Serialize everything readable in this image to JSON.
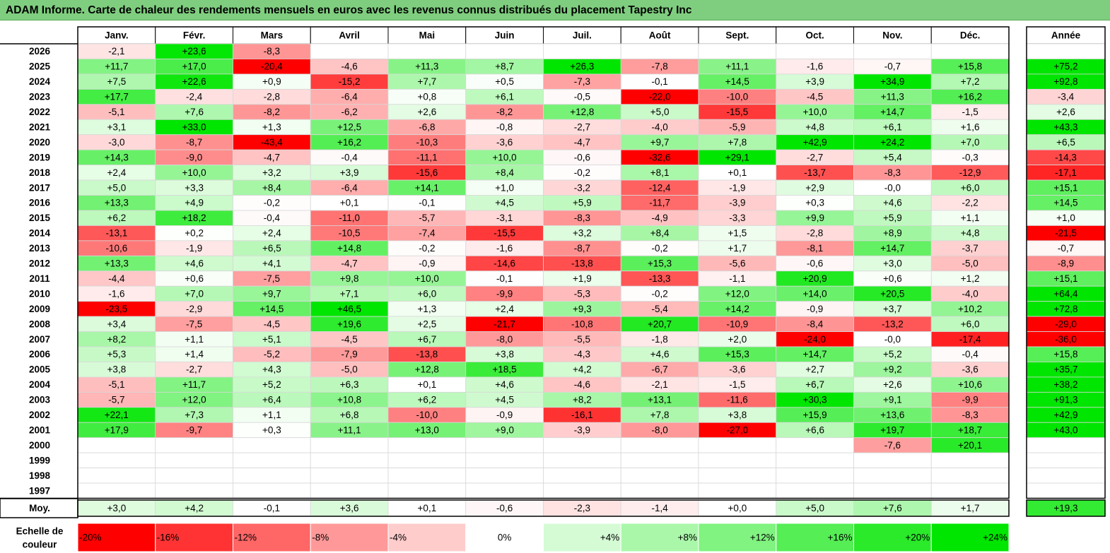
{
  "title": "ADAM Informe. Carte de chaleur des rendements mensuels en euros avec les revenus connus distribués du placement Tapestry Inc",
  "chart_data": {
    "type": "heatmap",
    "title": "ADAM Informe. Carte de chaleur des rendements mensuels en euros avec les revenus connus distribués du placement Tapestry Inc",
    "months": [
      "Janv.",
      "Févr.",
      "Mars",
      "Avril",
      "Mai",
      "Juin",
      "Juil.",
      "Août",
      "Sept.",
      "Oct.",
      "Nov.",
      "Déc."
    ],
    "year_header": "Année",
    "rows": [
      {
        "year": "2026",
        "values": [
          "-2,1",
          "+23,6",
          "-8,3",
          "",
          "",
          "",
          "",
          "",
          "",
          "",
          "",
          ""
        ],
        "annual": ""
      },
      {
        "year": "2025",
        "values": [
          "+11,7",
          "+17,0",
          "-20,4",
          "-4,6",
          "+11,3",
          "+8,7",
          "+26,3",
          "-7,8",
          "+11,1",
          "-1,6",
          "-0,7",
          "+15,8"
        ],
        "annual": "+75,2"
      },
      {
        "year": "2024",
        "values": [
          "+7,5",
          "+22,6",
          "+0,9",
          "-15,2",
          "+7,7",
          "+0,5",
          "-7,3",
          "-0,1",
          "+14,5",
          "+3,9",
          "+34,9",
          "+7,2"
        ],
        "annual": "+92,8"
      },
      {
        "year": "2023",
        "values": [
          "+17,7",
          "-2,4",
          "-2,8",
          "-6,4",
          "+0,8",
          "+6,1",
          "-0,5",
          "-22,0",
          "-10,0",
          "-4,5",
          "+11,3",
          "+16,2"
        ],
        "annual": "-3,4"
      },
      {
        "year": "2022",
        "values": [
          "-5,1",
          "+7,6",
          "-8,2",
          "-6,2",
          "+2,6",
          "-8,2",
          "+12,8",
          "+5,0",
          "-15,5",
          "+10,0",
          "+14,7",
          "-1,5"
        ],
        "annual": "+2,6"
      },
      {
        "year": "2021",
        "values": [
          "+3,1",
          "+33,0",
          "+1,3",
          "+12,5",
          "-6,8",
          "-0,8",
          "-2,7",
          "-4,0",
          "-5,9",
          "+4,8",
          "+6,1",
          "+1,6"
        ],
        "annual": "+43,3"
      },
      {
        "year": "2020",
        "values": [
          "-3,0",
          "-8,7",
          "-43,4",
          "+16,2",
          "-10,3",
          "-3,6",
          "-4,7",
          "+9,7",
          "+7,8",
          "+42,9",
          "+24,2",
          "+7,0"
        ],
        "annual": "+6,5"
      },
      {
        "year": "2019",
        "values": [
          "+14,3",
          "-9,0",
          "-4,7",
          "-0,4",
          "-11,1",
          "+10,0",
          "-0,6",
          "-32,6",
          "+29,1",
          "-2,7",
          "+5,4",
          "-0,3"
        ],
        "annual": "-14,3"
      },
      {
        "year": "2018",
        "values": [
          "+2,4",
          "+10,0",
          "+3,2",
          "+3,9",
          "-15,6",
          "+8,4",
          "-0,2",
          "+8,1",
          "+0,1",
          "-13,7",
          "-8,3",
          "-12,9"
        ],
        "annual": "-17,1"
      },
      {
        "year": "2017",
        "values": [
          "+5,0",
          "+3,3",
          "+8,4",
          "-6,4",
          "+14,1",
          "+1,0",
          "-3,2",
          "-12,4",
          "-1,9",
          "+2,9",
          "-0,0",
          "+6,0"
        ],
        "annual": "+15,1"
      },
      {
        "year": "2016",
        "values": [
          "+13,3",
          "+4,9",
          "-0,2",
          "+0,1",
          "-0,1",
          "+4,5",
          "+5,9",
          "-11,7",
          "-3,9",
          "+0,3",
          "+4,6",
          "-2,2"
        ],
        "annual": "+14,5"
      },
      {
        "year": "2015",
        "values": [
          "+6,2",
          "+18,2",
          "-0,4",
          "-11,0",
          "-5,7",
          "-3,1",
          "-8,3",
          "-4,9",
          "-3,3",
          "+9,9",
          "+5,9",
          "+1,1"
        ],
        "annual": "+1,0"
      },
      {
        "year": "2014",
        "values": [
          "-13,1",
          "+0,2",
          "+2,4",
          "-10,5",
          "-7,4",
          "-15,5",
          "+3,2",
          "+8,4",
          "+1,5",
          "-2,8",
          "+8,9",
          "+4,8"
        ],
        "annual": "-21,5"
      },
      {
        "year": "2013",
        "values": [
          "-10,6",
          "-1,9",
          "+6,5",
          "+14,8",
          "-0,2",
          "-1,6",
          "-8,7",
          "-0,2",
          "+1,7",
          "-8,1",
          "+14,7",
          "-3,7"
        ],
        "annual": "-0,7"
      },
      {
        "year": "2012",
        "values": [
          "+13,3",
          "+4,6",
          "+4,1",
          "-4,7",
          "-0,9",
          "-14,6",
          "-13,8",
          "+15,3",
          "-5,6",
          "-0,6",
          "+3,0",
          "-5,0"
        ],
        "annual": "-8,9"
      },
      {
        "year": "2011",
        "values": [
          "-4,4",
          "+0,6",
          "-7,5",
          "+9,8",
          "+10,0",
          "-0,1",
          "+1,9",
          "-13,3",
          "-1,1",
          "+20,9",
          "+0,6",
          "+1,2"
        ],
        "annual": "+15,1"
      },
      {
        "year": "2010",
        "values": [
          "-1,6",
          "+7,0",
          "+9,7",
          "+7,1",
          "+6,0",
          "-9,9",
          "-5,3",
          "-0,2",
          "+12,0",
          "+14,0",
          "+20,5",
          "-4,0"
        ],
        "annual": "+64,4"
      },
      {
        "year": "2009",
        "values": [
          "-23,5",
          "-2,9",
          "+14,5",
          "+46,5",
          "+1,3",
          "+2,4",
          "+9,3",
          "-5,4",
          "+14,2",
          "-0,9",
          "+3,7",
          "+10,2"
        ],
        "annual": "+72,8"
      },
      {
        "year": "2008",
        "values": [
          "+3,4",
          "-7,5",
          "-4,5",
          "+19,6",
          "+2,5",
          "-21,7",
          "-10,8",
          "+20,7",
          "-10,9",
          "-8,4",
          "-13,2",
          "+6,0"
        ],
        "annual": "-29,0"
      },
      {
        "year": "2007",
        "values": [
          "+8,2",
          "+1,1",
          "+5,1",
          "-4,5",
          "+6,7",
          "-8,0",
          "-5,5",
          "-1,8",
          "+2,0",
          "-24,0",
          "-0,0",
          "-17,4"
        ],
        "annual": "-36,0"
      },
      {
        "year": "2006",
        "values": [
          "+5,3",
          "+1,4",
          "-5,2",
          "-7,9",
          "-13,8",
          "+3,8",
          "-4,3",
          "+4,6",
          "+15,3",
          "+14,7",
          "+5,2",
          "-0,4"
        ],
        "annual": "+15,8"
      },
      {
        "year": "2005",
        "values": [
          "+3,8",
          "-2,7",
          "+4,3",
          "-5,0",
          "+12,8",
          "+18,5",
          "+4,2",
          "-6,7",
          "-3,6",
          "+2,7",
          "+9,2",
          "-3,6"
        ],
        "annual": "+35,7"
      },
      {
        "year": "2004",
        "values": [
          "-5,1",
          "+11,7",
          "+5,2",
          "+6,3",
          "+0,1",
          "+4,6",
          "-4,6",
          "-2,1",
          "-1,5",
          "+6,7",
          "+2,6",
          "+10,6"
        ],
        "annual": "+38,2"
      },
      {
        "year": "2003",
        "values": [
          "-5,7",
          "+12,0",
          "+6,4",
          "+10,8",
          "+6,2",
          "+4,5",
          "+8,2",
          "+13,1",
          "-11,6",
          "+30,3",
          "+9,1",
          "-9,9"
        ],
        "annual": "+91,3"
      },
      {
        "year": "2002",
        "values": [
          "+22,1",
          "+7,3",
          "+1,1",
          "+6,8",
          "-10,0",
          "-0,9",
          "-16,1",
          "+7,8",
          "+3,8",
          "+15,9",
          "+13,6",
          "-8,3"
        ],
        "annual": "+42,9"
      },
      {
        "year": "2001",
        "values": [
          "+17,9",
          "-9,7",
          "+0,3",
          "+11,1",
          "+13,0",
          "+9,0",
          "-3,9",
          "-8,0",
          "-27,0",
          "+6,6",
          "+19,7",
          "+18,7"
        ],
        "annual": "+43,0"
      },
      {
        "year": "2000",
        "values": [
          "",
          "",
          "",
          "",
          "",
          "",
          "",
          "",
          "",
          "",
          "-7,6",
          "+20,1"
        ],
        "annual": ""
      },
      {
        "year": "1999",
        "values": [
          "",
          "",
          "",
          "",
          "",
          "",
          "",
          "",
          "",
          "",
          "",
          ""
        ],
        "annual": ""
      },
      {
        "year": "1998",
        "values": [
          "",
          "",
          "",
          "",
          "",
          "",
          "",
          "",
          "",
          "",
          "",
          ""
        ],
        "annual": ""
      },
      {
        "year": "1997",
        "values": [
          "",
          "",
          "",
          "",
          "",
          "",
          "",
          "",
          "",
          "",
          "",
          ""
        ],
        "annual": ""
      }
    ],
    "average": {
      "label": "Moy.",
      "values": [
        "+3,0",
        "+4,2",
        "-0,1",
        "+3,6",
        "+0,1",
        "-0,6",
        "-2,3",
        "-1,4",
        "+0,0",
        "+5,0",
        "+7,6",
        "+1,7"
      ],
      "annual": "+19,3"
    },
    "scale": {
      "label_line1": "Echelle de",
      "label_line2": "couleur",
      "stops": [
        "-20%",
        "-16%",
        "-12%",
        "-8%",
        "-4%",
        "0%",
        "+4%",
        "+8%",
        "+12%",
        "+16%",
        "+20%",
        "+24%"
      ],
      "stop_values": [
        -20,
        -16,
        -12,
        -8,
        -4,
        0,
        4,
        8,
        12,
        16,
        20,
        24
      ]
    },
    "colors": {
      "negative_max": "#ff0000",
      "positive_max": "#00e600",
      "neutral": "#ffffff",
      "title_bar": "#7fce7f"
    }
  }
}
